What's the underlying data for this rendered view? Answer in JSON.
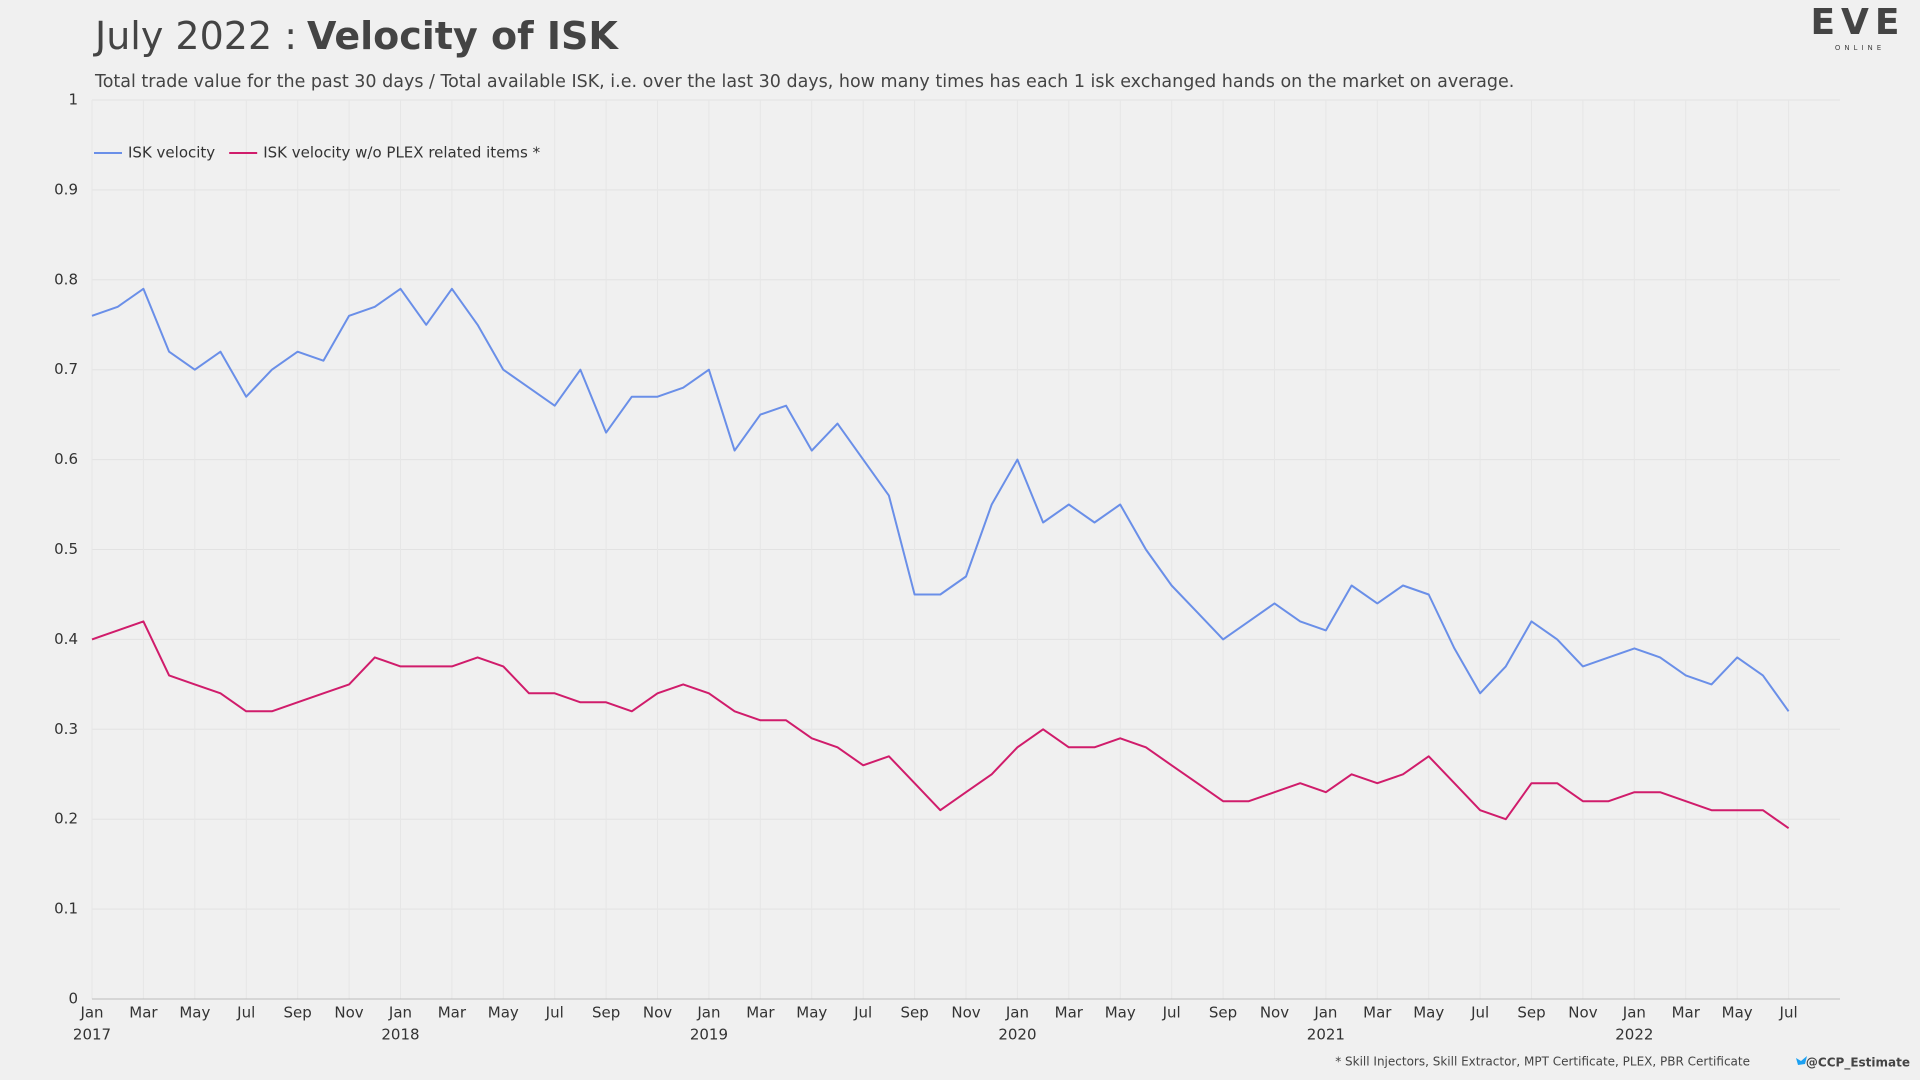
{
  "chart_data": {
    "type": "line",
    "title_prefix": "July 2022 :",
    "title": "Velocity of ISK",
    "subtitle": "Total trade value for the past 30 days / Total available ISK, i.e. over the last 30 days, how many times has each 1 isk exchanged hands on the market on average.",
    "logo": "EVE",
    "logo_sub": "ONLINE",
    "footnote": "* Skill Injectors, Skill Extractor, MPT Certificate, PLEX, PBR Certificate",
    "credit": "@CCP_Estimate",
    "x": [
      "2017-01",
      "2017-02",
      "2017-03",
      "2017-04",
      "2017-05",
      "2017-06",
      "2017-07",
      "2017-08",
      "2017-09",
      "2017-10",
      "2017-11",
      "2017-12",
      "2018-01",
      "2018-02",
      "2018-03",
      "2018-04",
      "2018-05",
      "2018-06",
      "2018-07",
      "2018-08",
      "2018-09",
      "2018-10",
      "2018-11",
      "2018-12",
      "2019-01",
      "2019-02",
      "2019-03",
      "2019-04",
      "2019-05",
      "2019-06",
      "2019-07",
      "2019-08",
      "2019-09",
      "2019-10",
      "2019-11",
      "2019-12",
      "2020-01",
      "2020-02",
      "2020-03",
      "2020-04",
      "2020-05",
      "2020-06",
      "2020-07",
      "2020-08",
      "2020-09",
      "2020-10",
      "2020-11",
      "2020-12",
      "2021-01",
      "2021-02",
      "2021-03",
      "2021-04",
      "2021-05",
      "2021-06",
      "2021-07",
      "2021-08",
      "2021-09",
      "2021-10",
      "2021-11",
      "2021-12",
      "2022-01",
      "2022-02",
      "2022-03",
      "2022-04",
      "2022-05",
      "2022-06",
      "2022-07"
    ],
    "series": [
      {
        "name": "ISK velocity",
        "color": "#6a8fe8",
        "values": [
          0.76,
          0.77,
          0.79,
          0.72,
          0.7,
          0.72,
          0.67,
          0.7,
          0.72,
          0.71,
          0.76,
          0.77,
          0.79,
          0.75,
          0.79,
          0.75,
          0.7,
          0.68,
          0.66,
          0.7,
          0.63,
          0.67,
          0.67,
          0.68,
          0.7,
          0.61,
          0.65,
          0.66,
          0.61,
          0.64,
          0.6,
          0.56,
          0.45,
          0.45,
          0.47,
          0.55,
          0.6,
          0.53,
          0.55,
          0.53,
          0.55,
          0.5,
          0.46,
          0.43,
          0.4,
          0.42,
          0.44,
          0.42,
          0.41,
          0.46,
          0.44,
          0.46,
          0.45,
          0.39,
          0.34,
          0.37,
          0.42,
          0.4,
          0.37,
          0.38,
          0.39,
          0.38,
          0.36,
          0.35,
          0.38,
          0.36,
          0.32
        ]
      },
      {
        "name": "ISK velocity w/o PLEX related items *",
        "color": "#d01c6b",
        "values": [
          0.4,
          0.41,
          0.42,
          0.36,
          0.35,
          0.34,
          0.32,
          0.32,
          0.33,
          0.34,
          0.35,
          0.38,
          0.37,
          0.37,
          0.37,
          0.38,
          0.37,
          0.34,
          0.34,
          0.33,
          0.33,
          0.32,
          0.34,
          0.35,
          0.34,
          0.32,
          0.31,
          0.31,
          0.29,
          0.28,
          0.26,
          0.27,
          0.24,
          0.21,
          0.23,
          0.25,
          0.28,
          0.3,
          0.28,
          0.28,
          0.29,
          0.28,
          0.26,
          0.24,
          0.22,
          0.22,
          0.23,
          0.24,
          0.23,
          0.25,
          0.24,
          0.25,
          0.27,
          0.24,
          0.21,
          0.2,
          0.24,
          0.24,
          0.22,
          0.22,
          0.23,
          0.23,
          0.22,
          0.21,
          0.21,
          0.21,
          0.19
        ]
      }
    ],
    "xlim": [
      "2017-01",
      "2022-09"
    ],
    "xticks": [
      {
        "value": "2017-01",
        "label": "Jan"
      },
      {
        "value": "2017-03",
        "label": "Mar"
      },
      {
        "value": "2017-05",
        "label": "May"
      },
      {
        "value": "2017-07",
        "label": "Jul"
      },
      {
        "value": "2017-09",
        "label": "Sep"
      },
      {
        "value": "2017-11",
        "label": "Nov"
      },
      {
        "value": "2018-01",
        "label": "Jan"
      },
      {
        "value": "2018-03",
        "label": "Mar"
      },
      {
        "value": "2018-05",
        "label": "May"
      },
      {
        "value": "2018-07",
        "label": "Jul"
      },
      {
        "value": "2018-09",
        "label": "Sep"
      },
      {
        "value": "2018-11",
        "label": "Nov"
      },
      {
        "value": "2019-01",
        "label": "Jan"
      },
      {
        "value": "2019-03",
        "label": "Mar"
      },
      {
        "value": "2019-05",
        "label": "May"
      },
      {
        "value": "2019-07",
        "label": "Jul"
      },
      {
        "value": "2019-09",
        "label": "Sep"
      },
      {
        "value": "2019-11",
        "label": "Nov"
      },
      {
        "value": "2020-01",
        "label": "Jan"
      },
      {
        "value": "2020-03",
        "label": "Mar"
      },
      {
        "value": "2020-05",
        "label": "May"
      },
      {
        "value": "2020-07",
        "label": "Jul"
      },
      {
        "value": "2020-09",
        "label": "Sep"
      },
      {
        "value": "2020-11",
        "label": "Nov"
      },
      {
        "value": "2021-01",
        "label": "Jan"
      },
      {
        "value": "2021-03",
        "label": "Mar"
      },
      {
        "value": "2021-05",
        "label": "May"
      },
      {
        "value": "2021-07",
        "label": "Jul"
      },
      {
        "value": "2021-09",
        "label": "Sep"
      },
      {
        "value": "2021-11",
        "label": "Nov"
      },
      {
        "value": "2022-01",
        "label": "Jan"
      },
      {
        "value": "2022-03",
        "label": "Mar"
      },
      {
        "value": "2022-05",
        "label": "May"
      },
      {
        "value": "2022-07",
        "label": "Jul"
      }
    ],
    "year_labels": [
      {
        "value": "2017-01",
        "label": "2017"
      },
      {
        "value": "2018-01",
        "label": "2018"
      },
      {
        "value": "2019-01",
        "label": "2019"
      },
      {
        "value": "2020-01",
        "label": "2020"
      },
      {
        "value": "2021-01",
        "label": "2021"
      },
      {
        "value": "2022-01",
        "label": "2022"
      }
    ],
    "ylim": [
      0,
      1
    ],
    "yticks": [
      0,
      0.1,
      0.2,
      0.3,
      0.4,
      0.5,
      0.6,
      0.7,
      0.8,
      0.9,
      1
    ],
    "grid": true,
    "legend": "top-left"
  }
}
